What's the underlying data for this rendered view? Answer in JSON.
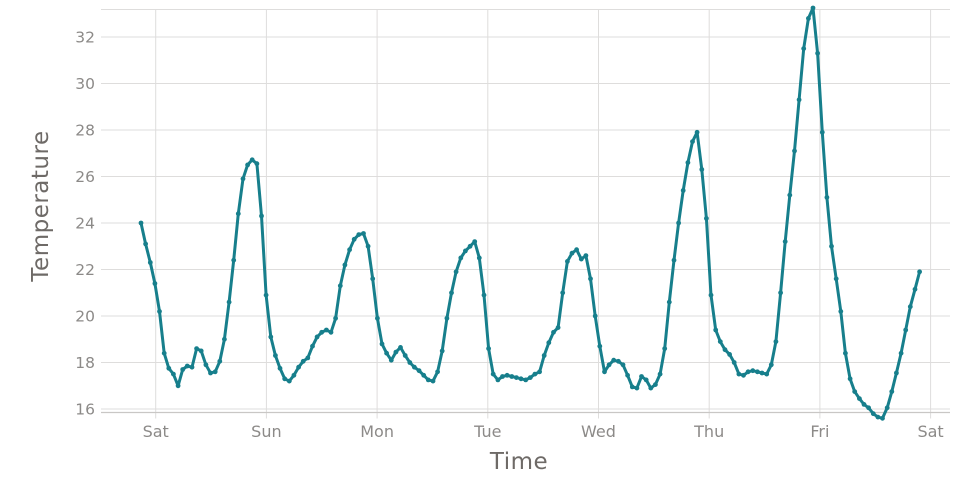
{
  "chart_data": {
    "type": "line",
    "title": "",
    "xlabel": "Time",
    "ylabel": "Temperature",
    "x_tick_labels": [
      "Sat",
      "Sun",
      "Mon",
      "Tue",
      "Wed",
      "Thu",
      "Fri",
      "Sat"
    ],
    "y_ticks": [
      16,
      18,
      20,
      22,
      24,
      26,
      28,
      30,
      32
    ],
    "ylim": [
      15.85,
      33.35
    ],
    "x_description": "7 days of hourly temperature samples, starting 3 hours before the first Saturday midnight tick and ending just before the final Saturday tick",
    "grid": true,
    "legend": "none",
    "marker": "dot-on-line",
    "series": [
      {
        "name": "temperature",
        "color": "#177F8C",
        "values": [
          24.0,
          23.1,
          22.3,
          21.4,
          20.2,
          18.4,
          17.75,
          17.5,
          17.0,
          17.7,
          17.85,
          17.8,
          18.6,
          18.5,
          17.9,
          17.55,
          17.6,
          18.05,
          19.0,
          20.6,
          22.4,
          24.4,
          25.9,
          26.5,
          26.72,
          26.55,
          24.3,
          20.9,
          19.1,
          18.3,
          17.75,
          17.3,
          17.2,
          17.45,
          17.8,
          18.05,
          18.2,
          18.7,
          19.1,
          19.3,
          19.4,
          19.3,
          19.9,
          21.3,
          22.2,
          22.85,
          23.3,
          23.5,
          23.55,
          23.0,
          21.6,
          19.9,
          18.8,
          18.4,
          18.1,
          18.45,
          18.65,
          18.3,
          18.0,
          17.8,
          17.65,
          17.45,
          17.25,
          17.2,
          17.6,
          18.5,
          19.9,
          21.0,
          21.9,
          22.5,
          22.8,
          23.0,
          23.2,
          22.5,
          20.9,
          18.6,
          17.5,
          17.25,
          17.4,
          17.45,
          17.4,
          17.35,
          17.3,
          17.25,
          17.35,
          17.5,
          17.6,
          18.3,
          18.85,
          19.3,
          19.5,
          21.0,
          22.35,
          22.7,
          22.85,
          22.45,
          22.6,
          21.6,
          20.0,
          18.7,
          17.6,
          17.9,
          18.1,
          18.05,
          17.9,
          17.45,
          16.95,
          16.9,
          17.4,
          17.25,
          16.9,
          17.05,
          17.5,
          18.6,
          20.6,
          22.4,
          24.0,
          25.4,
          26.6,
          27.5,
          27.9,
          26.3,
          24.2,
          20.9,
          19.4,
          18.9,
          18.55,
          18.35,
          18.0,
          17.5,
          17.45,
          17.6,
          17.65,
          17.6,
          17.55,
          17.5,
          17.9,
          18.9,
          21.0,
          23.2,
          25.2,
          27.1,
          29.3,
          31.5,
          32.8,
          33.25,
          31.3,
          27.9,
          25.1,
          23.0,
          21.6,
          20.2,
          18.4,
          17.3,
          16.75,
          16.45,
          16.2,
          16.05,
          15.8,
          15.65,
          15.6,
          16.05,
          16.75,
          17.55,
          18.4,
          19.4,
          20.4,
          21.15,
          21.9
        ]
      }
    ],
    "colors": {
      "line": "#177F8C",
      "grid": "#DEDDDC",
      "axis_line": "#C9C7C5",
      "tick_label": "#8C8A88",
      "axis_title": "#6E6A67",
      "background": "#FFFFFF"
    }
  }
}
